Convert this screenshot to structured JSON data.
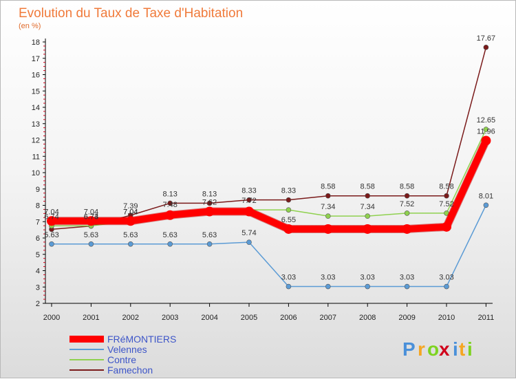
{
  "chart_data": {
    "type": "line",
    "title": "Evolution du Taux de Taxe d'Habitation",
    "subtitle": "(en %)",
    "xlabel": "",
    "ylabel": "",
    "x": [
      "2000",
      "2001",
      "2002",
      "2003",
      "2004",
      "2005",
      "2006",
      "2007",
      "2008",
      "2009",
      "2010",
      "2011"
    ],
    "ylim": [
      2,
      18
    ],
    "yticks": [
      "2",
      "3",
      "4",
      "5",
      "6",
      "7",
      "8",
      "9",
      "10",
      "11",
      "12",
      "13",
      "14",
      "15",
      "16",
      "17",
      "18"
    ],
    "grid": false,
    "legend_position": "bottom-left",
    "series": [
      {
        "name": "FRéMONTIERS",
        "color": "#ff0000",
        "values": [
          7.04,
          7.04,
          7.04,
          7.4,
          7.62,
          7.62,
          6.55,
          6.55,
          6.55,
          6.55,
          6.68,
          11.96
        ],
        "labels": [
          "7.04",
          "7.04",
          "7.04",
          "",
          "",
          "",
          "6.55",
          "",
          "",
          "",
          "",
          "11.96"
        ]
      },
      {
        "name": "Velennes",
        "color": "#5b9bd5",
        "values": [
          5.63,
          5.63,
          5.63,
          5.63,
          5.63,
          5.74,
          3.03,
          3.03,
          3.03,
          3.03,
          3.03,
          8.01
        ],
        "labels": [
          "5.63",
          "5.63",
          "5.63",
          "5.63",
          "5.63",
          "5.74",
          "3.03",
          "3.03",
          "3.03",
          "3.03",
          "3.03",
          "8.01"
        ]
      },
      {
        "name": "Contre",
        "color": "#8fd14f",
        "values": [
          6.74,
          6.74,
          7.04,
          7.48,
          7.62,
          7.72,
          7.72,
          7.34,
          7.34,
          7.52,
          7.52,
          12.65
        ],
        "labels": [
          "6.74",
          "6.74",
          "7.04",
          "7.48",
          "7.62",
          "7.72",
          "",
          "7.34",
          "7.34",
          "7.52",
          "7.52",
          "12.65"
        ]
      },
      {
        "name": "Famechon",
        "color": "#7a1a1a",
        "values": [
          6.53,
          6.73,
          7.39,
          8.13,
          8.13,
          8.33,
          8.33,
          8.58,
          8.58,
          8.58,
          8.58,
          17.67
        ],
        "labels": [
          "",
          "6.73",
          "7.39",
          "8.13",
          "8.13",
          "8.33",
          "8.33",
          "8.58",
          "8.58",
          "8.58",
          "8.58",
          "17.67"
        ]
      }
    ]
  },
  "brand": {
    "letters": [
      "P",
      "r",
      "o",
      "x",
      "i",
      "t",
      "i"
    ],
    "colors": [
      "#4a90d9",
      "#f5a623",
      "#7ed321",
      "#d0021b",
      "#4a90d9",
      "#f5a623",
      "#7ed321"
    ]
  }
}
